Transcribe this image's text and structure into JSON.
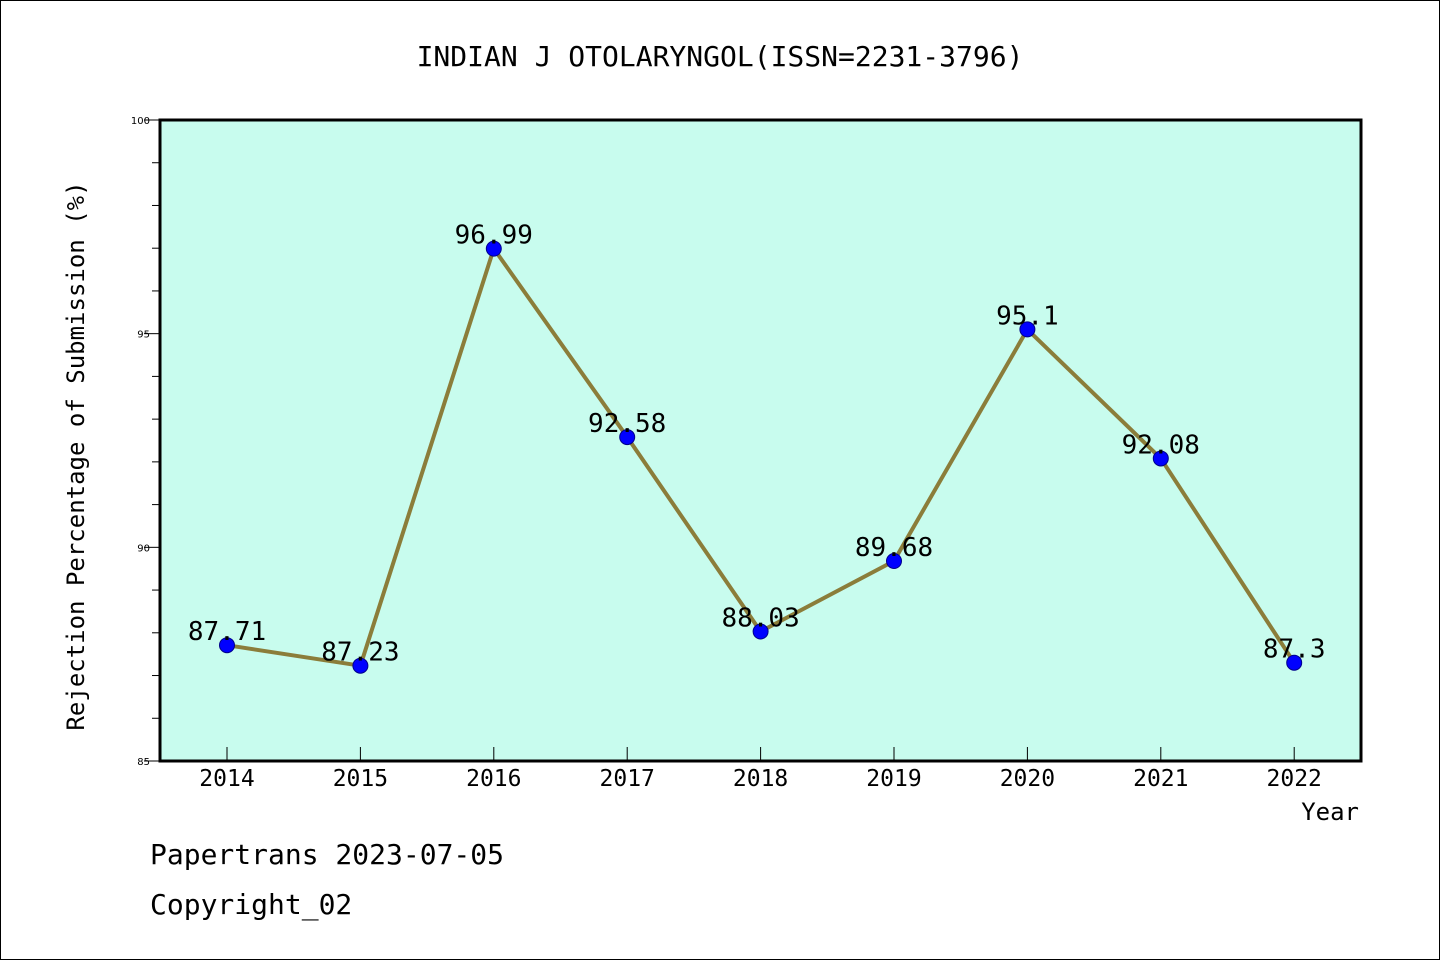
{
  "chart_data": {
    "type": "line",
    "title": "INDIAN J OTOLARYNGOL(ISSN=2231-3796)",
    "xlabel": "Year",
    "ylabel": "Rejection Percentage of Submission (%)",
    "x": [
      "2014",
      "2015",
      "2016",
      "2017",
      "2018",
      "2019",
      "2020",
      "2021",
      "2022"
    ],
    "series": [
      {
        "name": "Rejection Percentage",
        "values": [
          87.71,
          87.23,
          96.99,
          92.58,
          88.03,
          89.68,
          95.1,
          92.08,
          87.3
        ],
        "labels": [
          "87.71",
          "87.23",
          "96.99",
          "92.58",
          "88.03",
          "89.68",
          "95.1",
          "92.08",
          "87.3"
        ]
      }
    ],
    "ylim": [
      85,
      100
    ],
    "yticks": [
      "85",
      "90",
      "95",
      "100"
    ],
    "grid": false,
    "colors": {
      "plot_background": "#c8fcee",
      "line": "#8b7d3a",
      "marker": "#0000ff"
    }
  },
  "footer": {
    "line1": "Papertrans 2023-07-05",
    "line2": "Copyright_02"
  }
}
